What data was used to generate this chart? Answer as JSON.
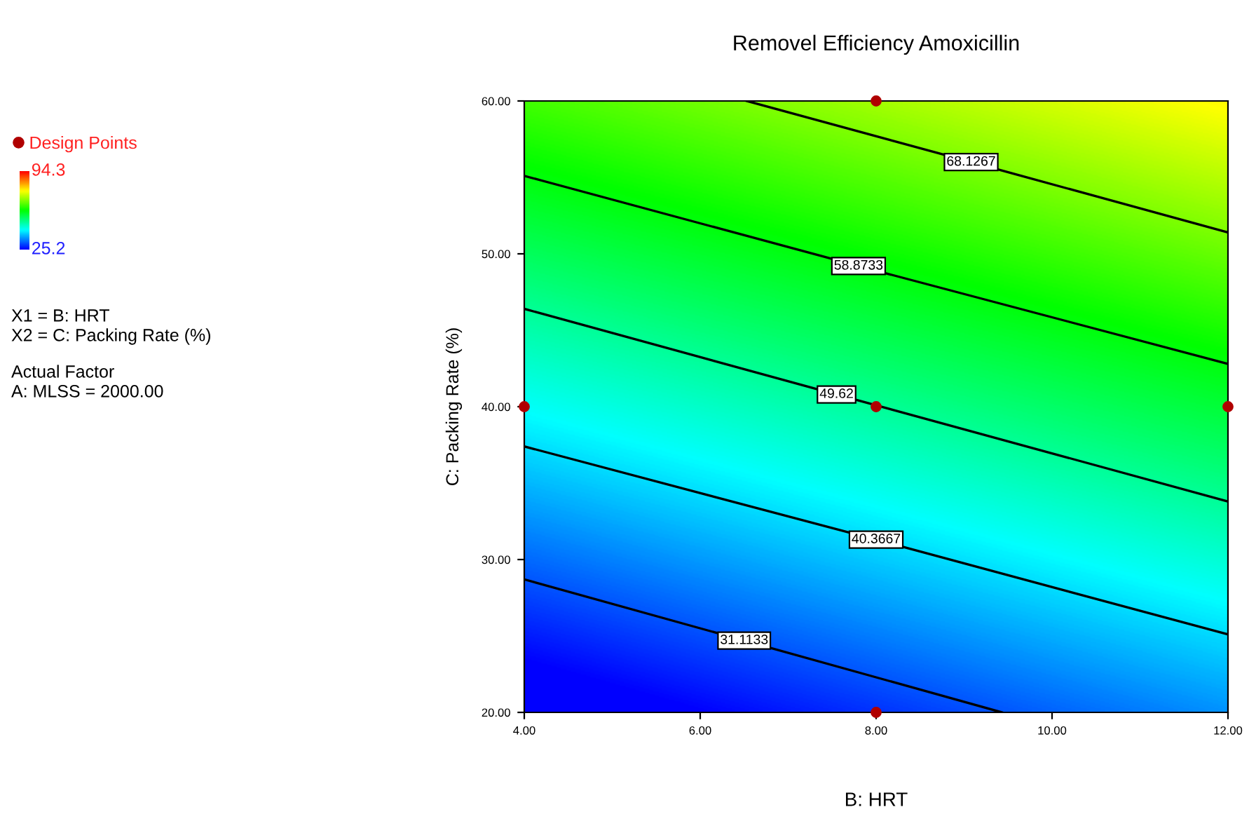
{
  "chart_data": {
    "type": "line",
    "title": "Removel Efficiency Amoxicillin",
    "xlabel": "B: HRT",
    "ylabel": "C: Packing Rate (%)",
    "xlim": [
      4,
      12
    ],
    "ylim": [
      20,
      60
    ],
    "xticks": [
      {
        "value": 4,
        "label": "4.00"
      },
      {
        "value": 6,
        "label": "6.00"
      },
      {
        "value": 8,
        "label": "8.00"
      },
      {
        "value": 10,
        "label": "10.00"
      },
      {
        "value": 12,
        "label": "12.00"
      }
    ],
    "yticks": [
      {
        "value": 20,
        "label": "20.00"
      },
      {
        "value": 30,
        "label": "30.00"
      },
      {
        "value": 40,
        "label": "40.00"
      },
      {
        "value": 50,
        "label": "50.00"
      },
      {
        "value": 60,
        "label": "60.00"
      }
    ],
    "clim": [
      25.2,
      94.3
    ],
    "cticks": [
      94.3,
      25.2
    ],
    "series": [
      {
        "name": "68.1267",
        "color": "#000000",
        "x": [
          6.53,
          9.08,
          12
        ],
        "values": [
          60,
          56.0,
          51.4
        ]
      },
      {
        "name": "58.8733",
        "color": "#000000",
        "x": [
          4,
          7.8,
          12
        ],
        "values": [
          55.1,
          49.2,
          42.8
        ]
      },
      {
        "name": "49.62",
        "color": "#000000",
        "x": [
          4,
          7.55,
          12
        ],
        "values": [
          46.4,
          40.8,
          33.8
        ]
      },
      {
        "name": "40.3667",
        "color": "#000000",
        "x": [
          4,
          8,
          12
        ],
        "values": [
          37.4,
          31.3,
          25.1
        ]
      },
      {
        "name": "31.1133",
        "color": "#000000",
        "x": [
          4,
          6.5,
          9.43
        ],
        "values": [
          28.7,
          24.7,
          20
        ]
      },
      {
        "name": "Design Points",
        "type": "scatter",
        "color": "#b00000",
        "marker": "circle",
        "x": [
          4,
          8,
          12,
          8,
          8
        ],
        "values": [
          40,
          40,
          40,
          20,
          60
        ]
      }
    ],
    "legend": "left",
    "grid": false,
    "annotations": [
      "X1 = B: HRT",
      "X2 = C: Packing Rate (%)",
      "Actual Factor",
      "A: MLSS = 2000.00"
    ]
  }
}
